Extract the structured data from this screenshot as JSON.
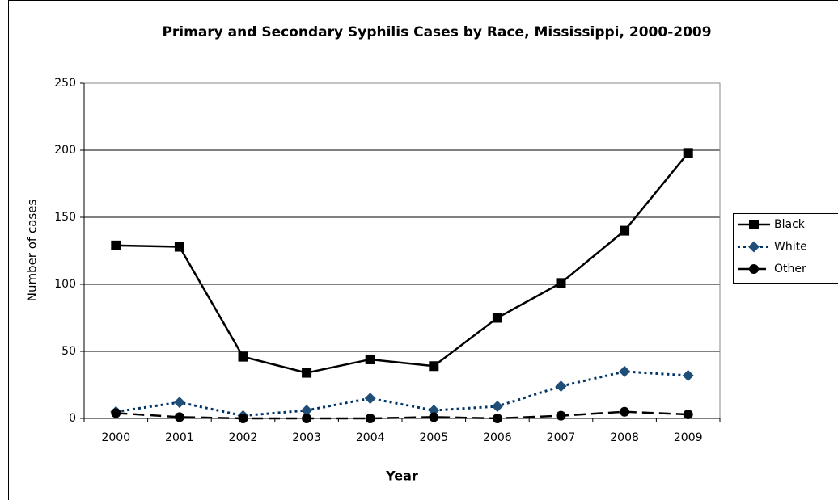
{
  "chart_data": {
    "type": "line",
    "title": "Primary and Secondary Syphilis Cases by Race, Mississippi, 2000-2009",
    "x_label": "Year",
    "y_label": "Number of cases",
    "categories": [
      "2000",
      "2001",
      "2002",
      "2003",
      "2004",
      "2005",
      "2006",
      "2007",
      "2008",
      "2009"
    ],
    "series": [
      {
        "name": "Black",
        "color": "#000000",
        "marker": "square",
        "dash": "solid",
        "values": [
          129,
          128,
          46,
          34,
          44,
          39,
          75,
          101,
          140,
          198
        ]
      },
      {
        "name": "White",
        "color": "#003366",
        "marker": "diamond",
        "dash": "dotted",
        "values": [
          5,
          12,
          2,
          6,
          15,
          6,
          9,
          24,
          35,
          32
        ]
      },
      {
        "name": "Other",
        "color": "#000000",
        "marker": "circle",
        "dash": "dashed",
        "values": [
          4,
          1,
          0,
          0,
          0,
          1,
          0,
          2,
          5,
          3
        ]
      }
    ],
    "ylim": [
      0,
      250
    ],
    "yticks": [
      0,
      50,
      100,
      150,
      200,
      250
    ],
    "grid": true,
    "legend": "right"
  }
}
